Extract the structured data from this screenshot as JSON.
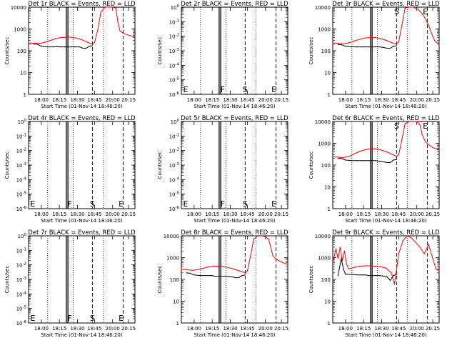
{
  "figure": {
    "xlabel": "Start Time (01-Nov-14 18:46:20)",
    "ylabel": "Counts/sec",
    "xticks": [
      "18:00",
      "18:15",
      "18:30",
      "18:45",
      "20:00",
      "20:15"
    ],
    "colors": {
      "events": "#000000",
      "lld": "#ff0000",
      "background": "#ffffff"
    }
  },
  "chart_data": [
    {
      "type": "line",
      "panel": "1r",
      "title": "Det 1r BLACK = Events, RED = LLD",
      "yscale": "log",
      "yticks": [
        "1",
        "10",
        "100",
        "1000",
        "10000"
      ],
      "letters": [],
      "series": [
        {
          "name": "Events",
          "x": [
            0.05,
            0.08,
            0.12,
            0.18,
            0.23,
            0.27,
            0.29,
            0.31,
            0.34,
            0.4,
            0.44,
            0.48,
            0.51,
            0.54,
            0.57,
            0.6
          ],
          "y": [
            200,
            200,
            160,
            150,
            150,
            155,
            150,
            150,
            150,
            150,
            150,
            150,
            130,
            130,
            160,
            170
          ]
        },
        {
          "name": "LLD",
          "x": [
            0.0,
            0.05,
            0.1,
            0.15,
            0.2,
            0.25,
            0.3,
            0.35,
            0.4,
            0.45,
            0.5,
            0.55,
            0.6,
            0.62,
            0.65,
            0.68,
            0.72,
            0.76,
            0.79,
            0.82,
            0.84,
            0.86,
            0.9,
            0.95,
            1.0
          ],
          "y": [
            230,
            220,
            215,
            240,
            290,
            350,
            400,
            420,
            420,
            380,
            320,
            250,
            200,
            240,
            900,
            6000,
            10000,
            10000,
            10000,
            9000,
            2000,
            800,
            600,
            500,
            420
          ]
        }
      ]
    },
    {
      "type": "line",
      "panel": "2r",
      "title": "Det 2r BLACK = Events, RED = LLD",
      "yscale": "log",
      "yticks": [
        "10^-6",
        "10^-5",
        "10^-4",
        "10^-3",
        "10^-2",
        "10^-1",
        "10^0"
      ],
      "letters": [
        "E",
        "F",
        "S",
        "E"
      ],
      "series": []
    },
    {
      "type": "line",
      "panel": "3r",
      "title": "Det 3r BLACK = Events, RED = LLD",
      "yscale": "log",
      "yticks": [
        "1",
        "10",
        "100",
        "1000",
        "10000"
      ],
      "letters": [
        "S",
        "E"
      ],
      "series": [
        {
          "name": "Events",
          "x": [
            0.05,
            0.08,
            0.12,
            0.18,
            0.23,
            0.27,
            0.29,
            0.31,
            0.34,
            0.4,
            0.44,
            0.48,
            0.51,
            0.54,
            0.57,
            0.6
          ],
          "y": [
            190,
            190,
            160,
            150,
            150,
            150,
            150,
            150,
            150,
            150,
            150,
            140,
            130,
            130,
            160,
            170
          ]
        },
        {
          "name": "LLD",
          "x": [
            0.0,
            0.05,
            0.1,
            0.15,
            0.2,
            0.25,
            0.3,
            0.35,
            0.4,
            0.45,
            0.5,
            0.55,
            0.6,
            0.62,
            0.65,
            0.68,
            0.72,
            0.76,
            0.8,
            0.84,
            0.87,
            0.9,
            0.93,
            0.96,
            1.0
          ],
          "y": [
            230,
            220,
            210,
            230,
            280,
            330,
            380,
            400,
            400,
            360,
            300,
            240,
            200,
            260,
            1500,
            9000,
            10000,
            10000,
            8000,
            5000,
            3000,
            1500,
            600,
            280,
            200
          ]
        }
      ]
    },
    {
      "type": "line",
      "panel": "4r",
      "title": "Det 4r BLACK = Events, RED = LLD",
      "yscale": "log",
      "yticks": [
        "10^-6",
        "10^-5",
        "10^-4",
        "10^-3",
        "10^-2",
        "10^-1",
        "10^0"
      ],
      "letters": [
        "E",
        "F",
        "S",
        "E"
      ],
      "series": []
    },
    {
      "type": "line",
      "panel": "5r",
      "title": "Det 5r BLACK = Events, RED = LLD",
      "yscale": "log",
      "yticks": [
        "10^-6",
        "10^-5",
        "10^-4",
        "10^-3",
        "10^-2",
        "10^-1",
        "10^0"
      ],
      "letters": [
        "E",
        "F",
        "S",
        "E"
      ],
      "series": []
    },
    {
      "type": "line",
      "panel": "6r",
      "title": "Det 6r BLACK = Events, RED = LLD",
      "yscale": "log",
      "yticks": [
        "1",
        "10",
        "100",
        "1000",
        "10000"
      ],
      "letters": [
        "S",
        "E"
      ],
      "series": [
        {
          "name": "Events",
          "x": [
            0.05,
            0.08,
            0.12,
            0.18,
            0.23,
            0.27,
            0.29,
            0.31,
            0.34,
            0.4,
            0.44,
            0.48,
            0.51,
            0.54,
            0.57,
            0.6
          ],
          "y": [
            200,
            200,
            170,
            160,
            160,
            160,
            160,
            160,
            160,
            160,
            150,
            140,
            130,
            130,
            170,
            180
          ]
        },
        {
          "name": "LLD",
          "x": [
            0.0,
            0.05,
            0.1,
            0.15,
            0.2,
            0.25,
            0.3,
            0.35,
            0.4,
            0.45,
            0.5,
            0.55,
            0.6,
            0.62,
            0.65,
            0.68,
            0.72,
            0.76,
            0.79,
            0.82,
            0.84,
            0.87,
            0.91,
            0.95,
            1.0
          ],
          "y": [
            240,
            230,
            220,
            250,
            320,
            420,
            500,
            560,
            560,
            500,
            420,
            320,
            250,
            300,
            1500,
            8000,
            10000,
            10000,
            10000,
            7000,
            2500,
            1200,
            800,
            600,
            520
          ]
        }
      ]
    },
    {
      "type": "line",
      "panel": "7r",
      "title": "Det 7r BLACK = Events, RED = LLD",
      "yscale": "log",
      "yticks": [
        "10^-6",
        "10^-5",
        "10^-4",
        "10^-3",
        "10^-2",
        "10^-1",
        "10^0"
      ],
      "letters": [
        "E",
        "F",
        "S",
        "E"
      ],
      "series": []
    },
    {
      "type": "line",
      "panel": "8r",
      "title": "Det 8r BLACK = Events, RED = LLD",
      "yscale": "log",
      "yticks": [
        "1",
        "10",
        "100",
        "1000",
        "10000"
      ],
      "letters": [],
      "series": [
        {
          "name": "Events",
          "x": [
            0.05,
            0.08,
            0.12,
            0.18,
            0.23,
            0.27,
            0.29,
            0.31,
            0.34,
            0.4,
            0.44,
            0.48,
            0.51,
            0.54,
            0.57,
            0.6
          ],
          "y": [
            200,
            190,
            160,
            150,
            150,
            150,
            150,
            140,
            140,
            140,
            140,
            130,
            120,
            120,
            150,
            160
          ]
        },
        {
          "name": "LLD",
          "x": [
            0.0,
            0.05,
            0.1,
            0.15,
            0.2,
            0.25,
            0.3,
            0.35,
            0.4,
            0.45,
            0.5,
            0.55,
            0.6,
            0.62,
            0.65,
            0.68,
            0.72,
            0.76,
            0.79,
            0.82,
            0.84,
            0.86,
            0.9,
            0.95,
            1.0
          ],
          "y": [
            300,
            280,
            260,
            280,
            320,
            370,
            400,
            400,
            380,
            340,
            290,
            240,
            200,
            240,
            1200,
            7000,
            10000,
            10000,
            9000,
            7000,
            3000,
            1200,
            800,
            600,
            480
          ]
        }
      ]
    },
    {
      "type": "line",
      "panel": "9r",
      "title": "Det 9r BLACK = Events, RED = LLD",
      "yscale": "log",
      "yticks": [
        "1",
        "10",
        "100",
        "1000",
        "10000"
      ],
      "letters": [],
      "series": [
        {
          "name": "Events",
          "x": [
            0.05,
            0.08,
            0.1,
            0.12,
            0.18,
            0.23,
            0.27,
            0.29,
            0.31,
            0.34,
            0.4,
            0.44,
            0.48,
            0.51,
            0.54,
            0.57,
            0.6
          ],
          "y": [
            150,
            900,
            300,
            170,
            170,
            160,
            160,
            160,
            160,
            150,
            150,
            150,
            140,
            130,
            90,
            150,
            170
          ]
        },
        {
          "name": "LLD",
          "x": [
            0.0,
            0.03,
            0.05,
            0.07,
            0.09,
            0.11,
            0.13,
            0.15,
            0.2,
            0.25,
            0.3,
            0.35,
            0.4,
            0.45,
            0.5,
            0.55,
            0.58,
            0.62,
            0.66,
            0.7,
            0.74,
            0.78,
            0.82,
            0.86,
            0.9,
            0.94,
            0.97,
            1.0
          ],
          "y": [
            600,
            2500,
            900,
            3000,
            700,
            2000,
            500,
            300,
            350,
            400,
            420,
            420,
            400,
            380,
            330,
            200,
            60,
            1500,
            6000,
            10000,
            8000,
            5000,
            3000,
            1500,
            4000,
            900,
            300,
            250
          ]
        }
      ]
    }
  ]
}
